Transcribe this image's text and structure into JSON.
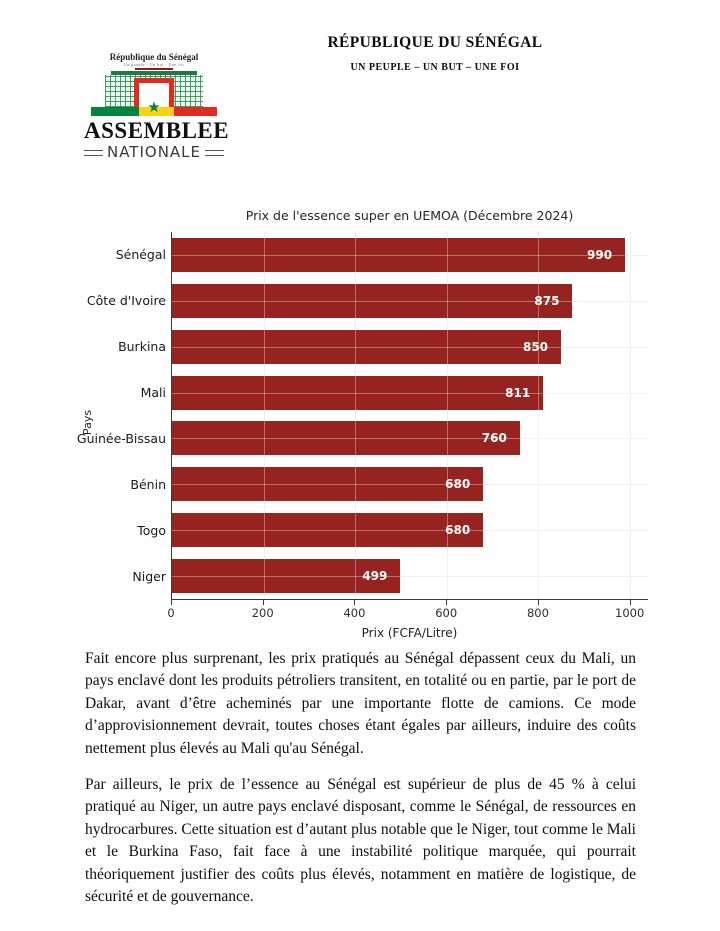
{
  "header": {
    "title": "RÉPUBLIQUE DU SÉNÉGAL",
    "motto": "UN PEUPLE – UN BUT – UNE FOI"
  },
  "logo": {
    "country": "République du Sénégal",
    "motto_small": "Un peuple - Un but - Une foi",
    "name_line1": "ASSEMBLEE",
    "name_line2": "NATIONALE",
    "star": "★",
    "colors": {
      "green": "#00853f",
      "yellow": "#fcd116",
      "red": "#e02b20"
    }
  },
  "chart_data": {
    "type": "bar",
    "orientation": "horizontal",
    "title": "Prix de l'essence super en UEMOA (Décembre 2024)",
    "categories": [
      "Sénégal",
      "Côte d'Ivoire",
      "Burkina",
      "Mali",
      "Guinée-Bissau",
      "Bénin",
      "Togo",
      "Niger"
    ],
    "values": [
      990,
      875,
      850,
      811,
      760,
      680,
      680,
      499
    ],
    "xlabel": "Prix (FCFA/Litre)",
    "ylabel": "Pays",
    "xticks": [
      0,
      200,
      400,
      600,
      800,
      1000
    ],
    "xlim": [
      0,
      1040
    ],
    "bar_color": "#96231f",
    "grid": true,
    "value_labels": true,
    "legend": "none"
  },
  "paragraphs": [
    "Fait encore plus surprenant, les prix pratiqués au Sénégal dépassent ceux du Mali, un pays enclavé dont les produits pétroliers transitent, en totalité ou en partie, par le port de Dakar, avant d’être acheminés par une importante flotte de camions. Ce mode d’approvisionnement devrait, toutes choses étant égales par ailleurs, induire des coûts nettement plus élevés au Mali qu'au Sénégal.",
    "Par ailleurs, le prix de l’essence au Sénégal est supérieur de plus de 45 % à celui pratiqué au Niger, un autre pays enclavé disposant, comme le Sénégal, de ressources en hydrocarbures. Cette situation est d’autant plus notable que le Niger, tout comme le Mali et le Burkina Faso, fait face à une instabilité politique marquée, qui pourrait théoriquement justifier des coûts plus élevés, notamment en matière de logistique, de sécurité et de gouvernance."
  ]
}
